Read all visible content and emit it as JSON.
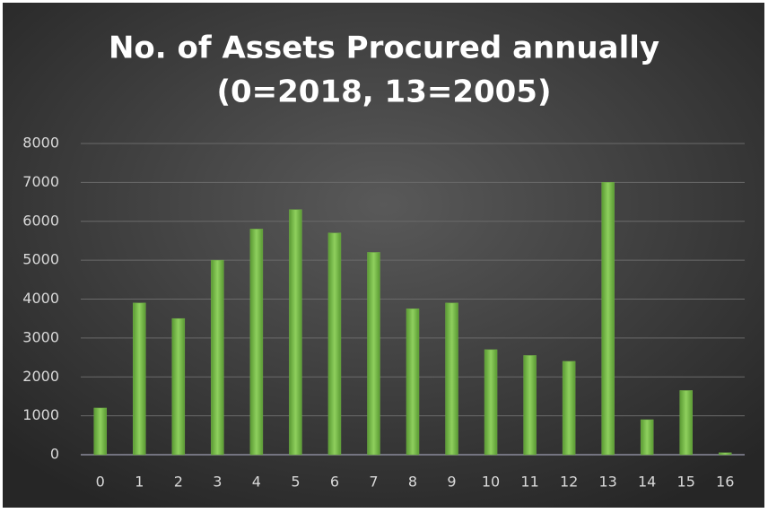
{
  "chart_data": {
    "type": "bar",
    "title": [
      "No. of Assets Procured annually",
      "(0=2018, 13=2005)"
    ],
    "categories": [
      "0",
      "1",
      "2",
      "3",
      "4",
      "5",
      "6",
      "7",
      "8",
      "9",
      "10",
      "11",
      "12",
      "13",
      "14",
      "15",
      "16"
    ],
    "values": [
      1200,
      3900,
      3500,
      5000,
      5800,
      6300,
      5700,
      5200,
      3750,
      3900,
      2700,
      2550,
      2400,
      7000,
      900,
      1650,
      50
    ],
    "color": "#70ad47",
    "ylim": [
      0,
      8000
    ],
    "yticks": [
      0,
      1000,
      2000,
      3000,
      4000,
      5000,
      6000,
      7000,
      8000
    ],
    "grid": true
  }
}
